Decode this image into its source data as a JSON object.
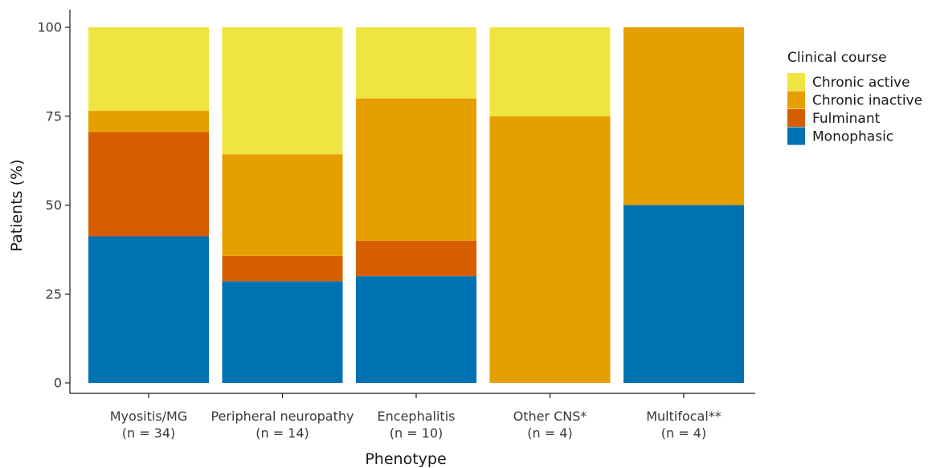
{
  "chart_data": {
    "type": "bar",
    "stacked": true,
    "xlabel": "Phenotype",
    "ylabel": "Patients (%)",
    "ylim": [
      0,
      100
    ],
    "yticks": [
      0,
      25,
      50,
      75,
      100
    ],
    "grid": false,
    "legend_position": "right",
    "legend_title": "Clinical course",
    "categories": [
      [
        "Myositis/MG",
        "(n = 34)"
      ],
      [
        "Peripheral neuropathy",
        "(n = 14)"
      ],
      [
        "Encephalitis",
        "(n = 10)"
      ],
      [
        "Other CNS*",
        "(n = 4)"
      ],
      [
        "Multifocal**",
        "(n = 4)"
      ]
    ],
    "series": [
      {
        "name": "Monophasic",
        "color": "#0072B2",
        "values": [
          41.2,
          28.6,
          30,
          0,
          50
        ]
      },
      {
        "name": "Fulminant",
        "color": "#D55E00",
        "values": [
          29.4,
          7.1,
          10,
          0,
          0
        ]
      },
      {
        "name": "Chronic inactive",
        "color": "#E69F00",
        "values": [
          5.9,
          28.6,
          40,
          75,
          50
        ]
      },
      {
        "name": "Chronic active",
        "color": "#F0E442",
        "values": [
          23.5,
          35.7,
          20,
          25,
          0
        ]
      }
    ],
    "legend_order": [
      "Chronic active",
      "Chronic inactive",
      "Fulminant",
      "Monophasic"
    ]
  }
}
